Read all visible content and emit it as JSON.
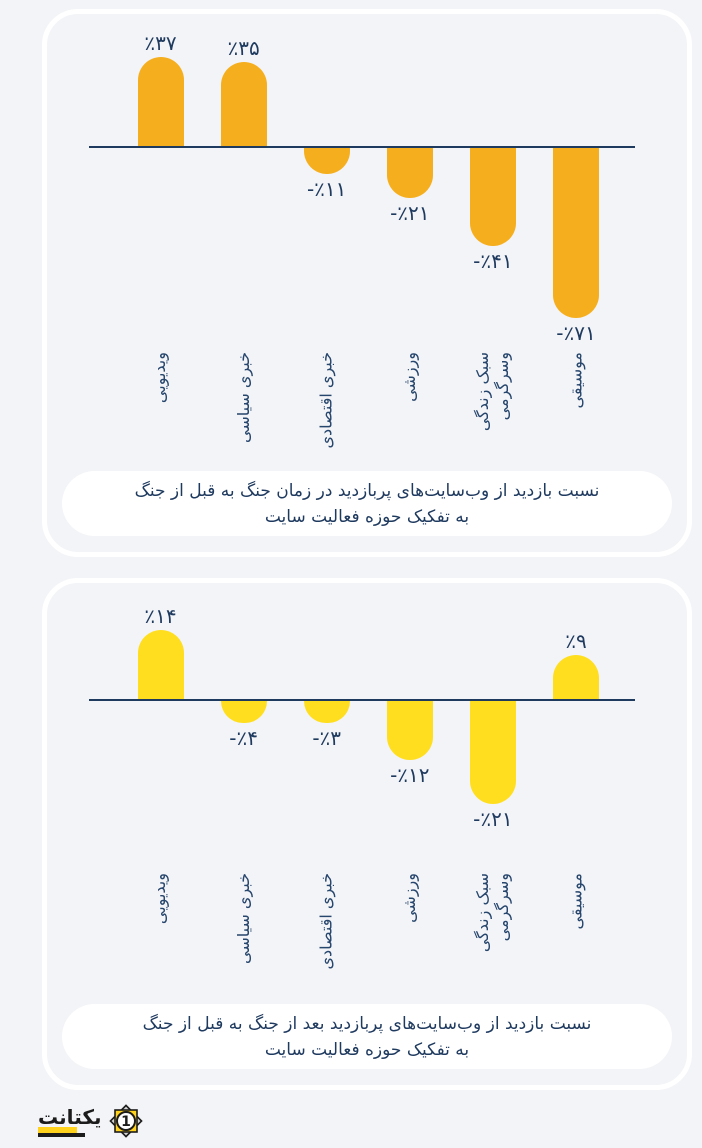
{
  "page": {
    "background": "#f3f4f7",
    "navy": "#1f3a5f"
  },
  "chart_data": [
    {
      "type": "bar",
      "title": "نسبت بازدید از وب‌سایت‌های پربازدید در زمان جنگ به قبل از جنگ به تفکیک حوزه فعالیت سایت",
      "caption_lines": [
        "نسبت بازدید از وب‌سایت‌های پربازدید در زمان جنگ به قبل از جنگ",
        "به تفکیک حوزه فعالیت سایت"
      ],
      "categories": [
        "موسیقی",
        "سبک زندگی\nوسرگرمی",
        "ورزشی",
        "خبری اقتصادی",
        "خبری سیاسی",
        "ویدیویی"
      ],
      "values": [
        -71,
        -41,
        -21,
        -11,
        35,
        37
      ],
      "value_labels": [
        "-٪۷۱",
        "-٪۴۱",
        "-٪۲۱",
        "-٪۱۱",
        "٪۳۵",
        "٪۳۷"
      ],
      "unit": "%",
      "bar_color": "#f5af1e",
      "order": "right-to-left",
      "grid": false,
      "baseline": 0
    },
    {
      "type": "bar",
      "title": "نسبت بازدید از وب‌سایت‌های پربازدید بعد از جنگ به قبل از جنگ به تفکیک حوزه فعالیت سایت",
      "caption_lines": [
        "نسبت بازدید از وب‌سایت‌های پربازدید بعد از جنگ به قبل از جنگ",
        "به تفکیک حوزه فعالیت سایت"
      ],
      "categories": [
        "موسیقی",
        "سبک زندگی\nوسرگرمی",
        "ورزشی",
        "خبری اقتصادی",
        "خبری سیاسی",
        "ویدیویی"
      ],
      "values": [
        9,
        -21,
        -12,
        -3,
        -4,
        14
      ],
      "value_labels": [
        "٪۹",
        "-٪۲۱",
        "-٪۱۲",
        "-٪۳",
        "-٪۴",
        "٪۱۴"
      ],
      "unit": "%",
      "bar_color": "#ffde1f",
      "order": "right-to-left",
      "grid": false,
      "baseline": 0
    }
  ],
  "footer": {
    "logo_text": "یکتانت",
    "badge_number": "1",
    "logo_yellow": "#ffd21e",
    "logo_black": "#1c1c1c"
  }
}
